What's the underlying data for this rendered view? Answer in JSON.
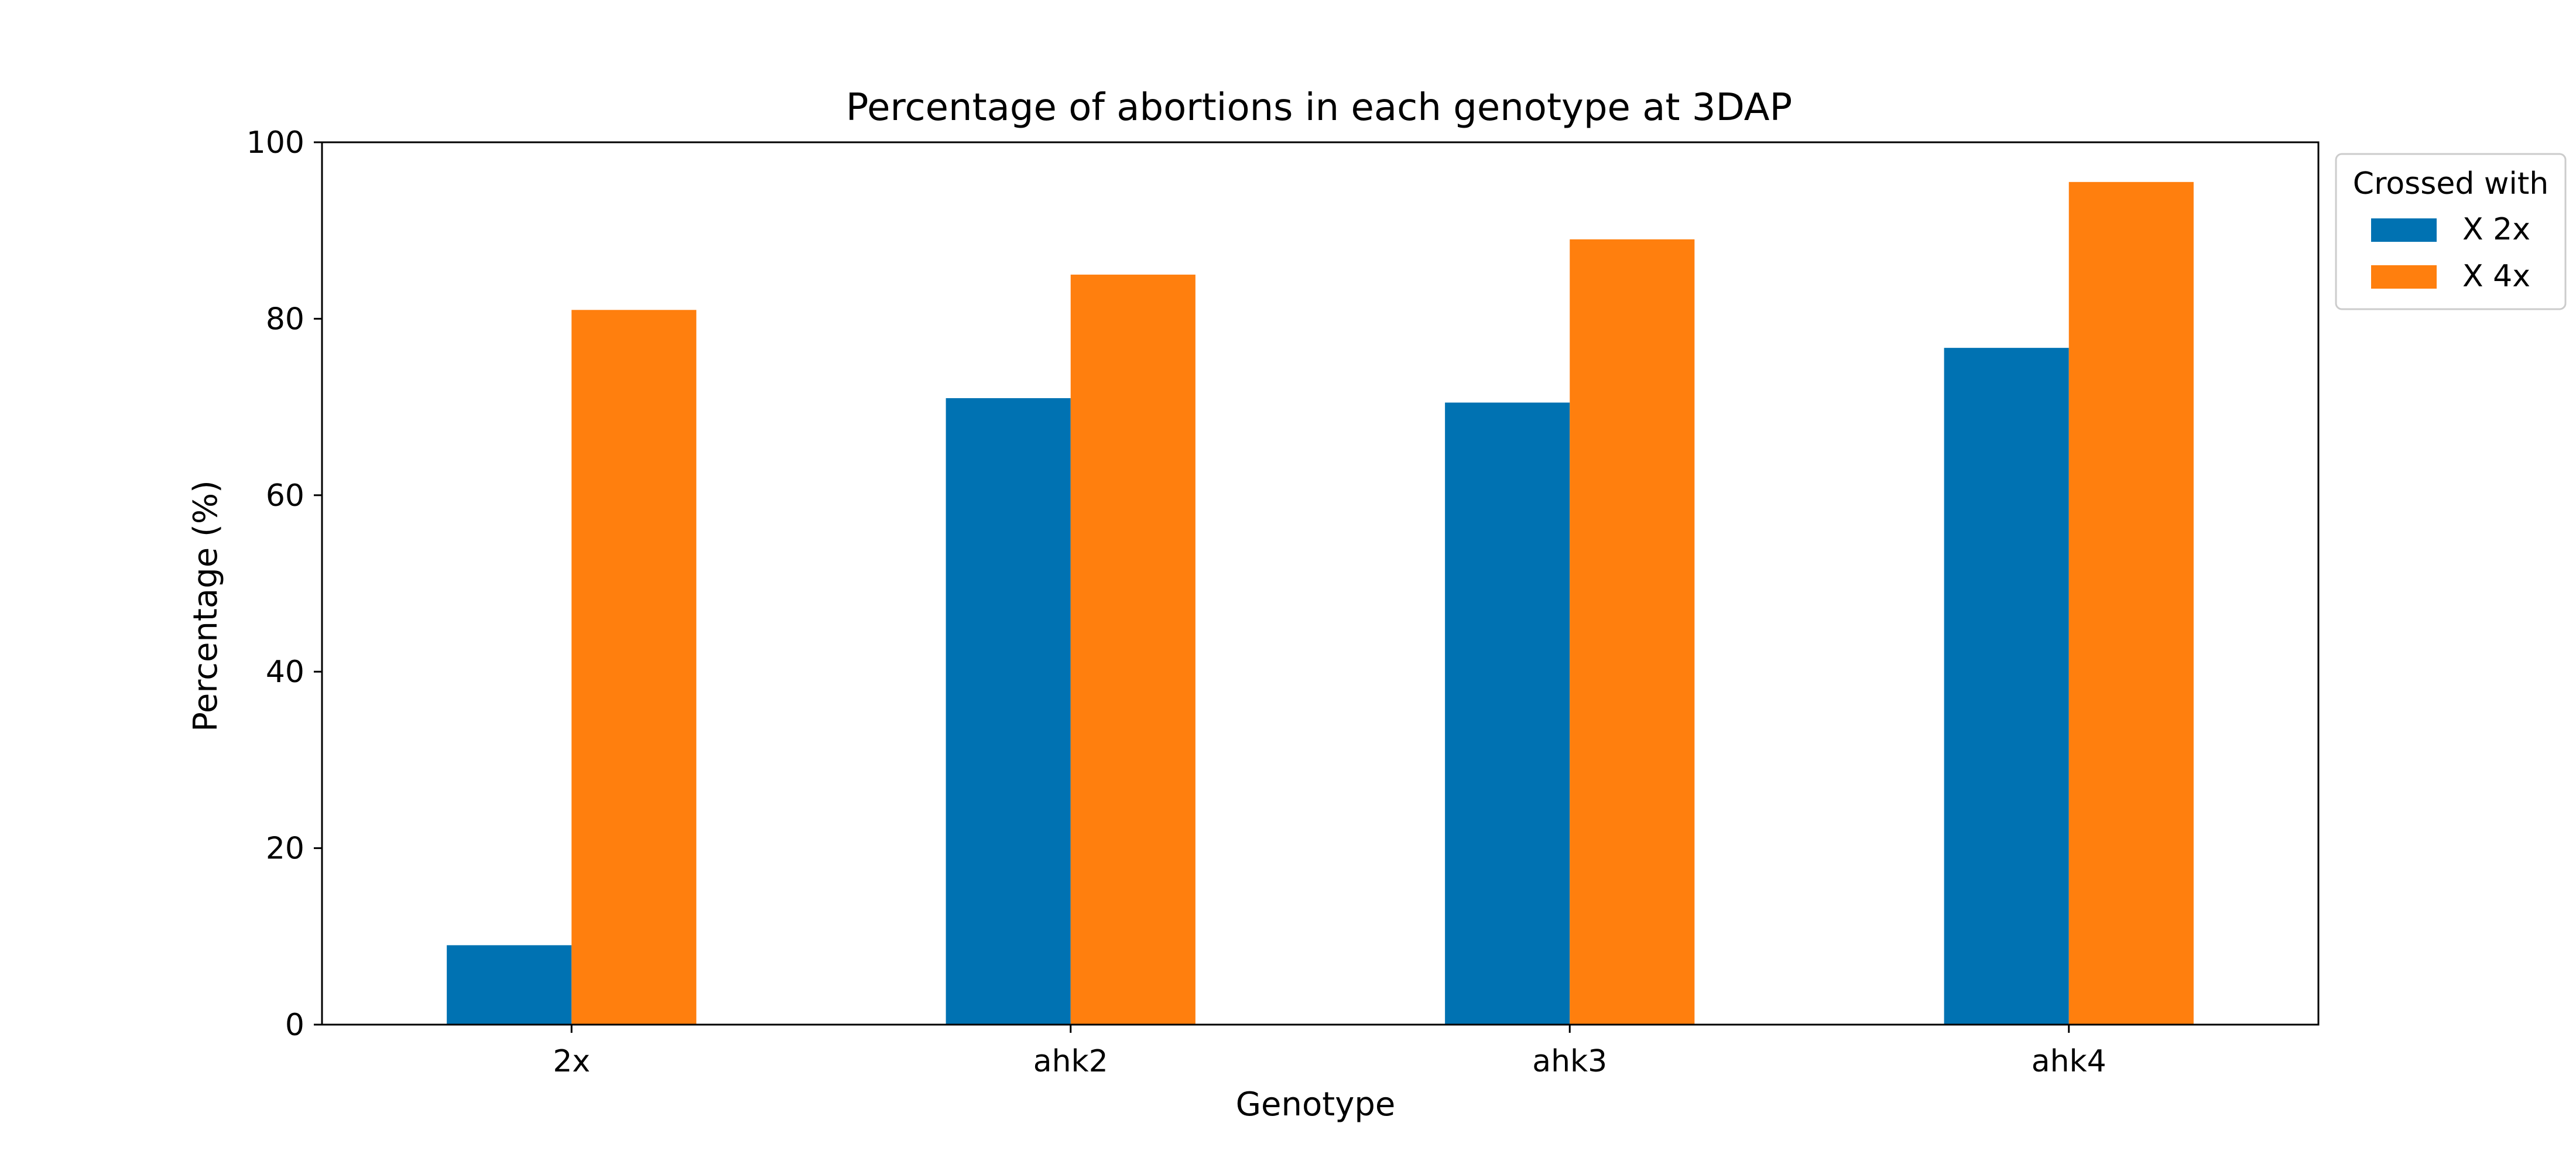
{
  "chart_data": {
    "type": "bar",
    "title": "Percentage of abortions in each genotype at 3DAP",
    "xlabel": "Genotype",
    "ylabel": "Percentage (%)",
    "categories": [
      "2x",
      "ahk2",
      "ahk3",
      "ahk4"
    ],
    "series": [
      {
        "name": "X 2x",
        "values": [
          9,
          71,
          70.5,
          76.7
        ],
        "color": "#0072B2"
      },
      {
        "name": "X 4x",
        "values": [
          81,
          85,
          89,
          95.5
        ],
        "color": "#FF7F0E"
      }
    ],
    "ylim": [
      0,
      100
    ],
    "yticks": [
      0,
      20,
      40,
      60,
      80,
      100
    ],
    "grid": false,
    "legend": {
      "title": "Crossed with",
      "placement": "outside-top-right"
    }
  }
}
